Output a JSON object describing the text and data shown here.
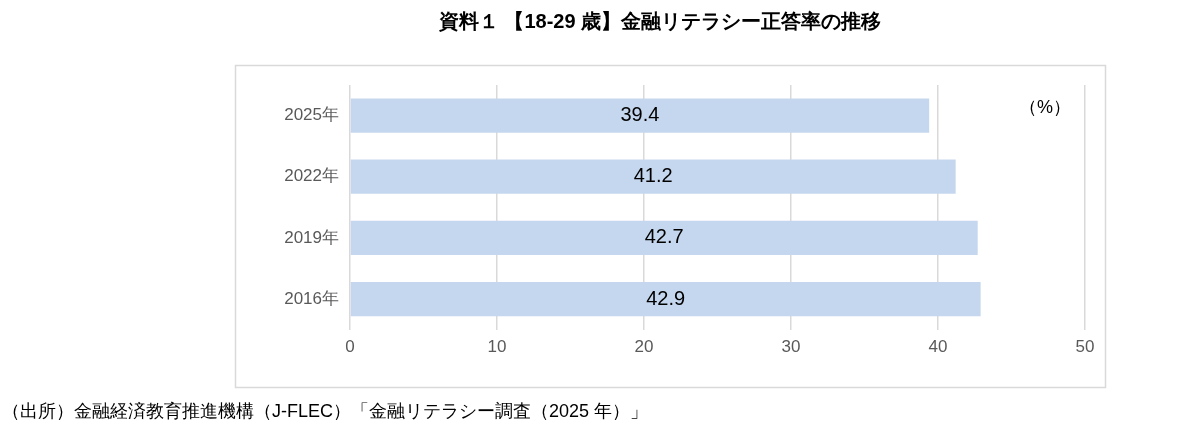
{
  "chart_data": {
    "type": "bar",
    "orientation": "horizontal",
    "title": "資料１ 【18-29 歳】金融リテラシー正答率の推移",
    "categories": [
      "2025年",
      "2022年",
      "2019年",
      "2016年"
    ],
    "values": [
      39.4,
      41.2,
      42.7,
      42.9
    ],
    "color": "#c5d7ee",
    "xlim": [
      0,
      50
    ],
    "xticks": [
      0,
      10,
      20,
      30,
      40,
      50
    ],
    "grid": "x",
    "data_labels": true,
    "annotations": [
      "（%）",
      "（出所）金融経済教育推進機構（J-FLEC）「金融リテラシー調査（2025 年）」"
    ]
  }
}
